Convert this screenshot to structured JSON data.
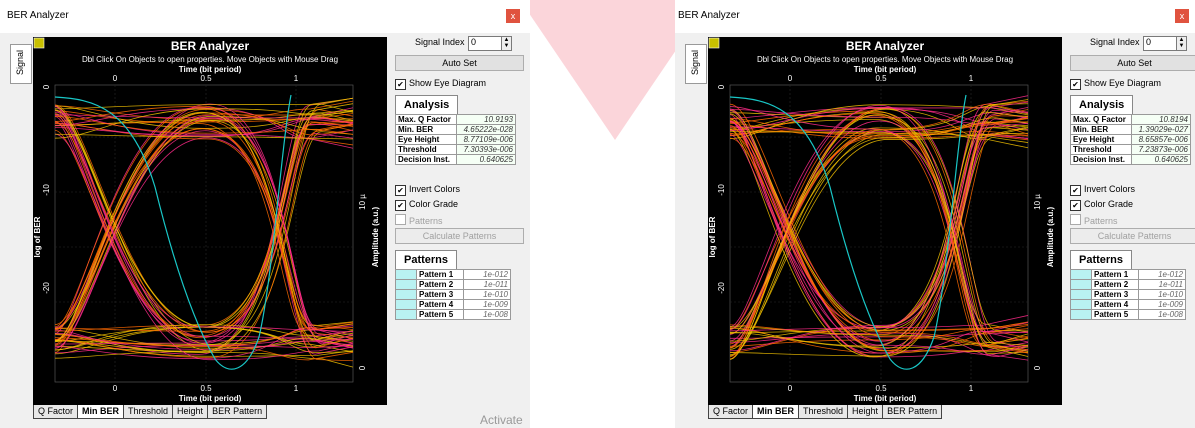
{
  "windows": [
    {
      "title": "BER Analyzer",
      "close_icon": "x",
      "side_tab": "Signal",
      "plot": {
        "title": "BER Analyzer",
        "subtitle": "Dbl Click On Objects to open properties.  Move Objects with Mouse Drag",
        "x_top_label": "Time (bit period)",
        "x_bottom_label": "Time (bit period)",
        "y_left_label": "log of BER",
        "y_right_label": "Amplitude (a.u.)",
        "x_ticks": [
          "0",
          "0.5",
          "1"
        ],
        "y_left_ticks": [
          "0",
          "-10",
          "-20"
        ],
        "y_right_ticks": [
          "10 µ",
          "0"
        ]
      },
      "signal_index_label": "Signal Index",
      "signal_index_value": "0",
      "auto_set_label": "Auto Set",
      "show_eye_label": "Show Eye Diagram",
      "analysis_tab": "Analysis",
      "analysis": [
        {
          "key": "Max. Q Factor",
          "value": "10.9193"
        },
        {
          "key": "Min. BER",
          "value": "4.65222e-028"
        },
        {
          "key": "Eye Height",
          "value": "8.77109e-006"
        },
        {
          "key": "Threshold",
          "value": "7.30393e-006"
        },
        {
          "key": "Decision Inst.",
          "value": "0.640625"
        }
      ],
      "invert_colors_label": "Invert Colors",
      "color_grade_label": "Color Grade",
      "patterns_check_label": "Patterns",
      "calc_patterns_label": "Calculate Patterns",
      "patterns_tab": "Patterns",
      "patterns": [
        {
          "key": "Pattern 1",
          "value": "1e-012"
        },
        {
          "key": "Pattern 2",
          "value": "1e-011"
        },
        {
          "key": "Pattern 3",
          "value": "1e-010"
        },
        {
          "key": "Pattern 4",
          "value": "1e-009"
        },
        {
          "key": "Pattern 5",
          "value": "1e-008"
        }
      ],
      "bottom_tabs": [
        "Q Factor",
        "Min BER",
        "Threshold",
        "Height",
        "BER Pattern"
      ],
      "active_tab": "Min BER",
      "watermark": "Activate"
    },
    {
      "title": "BER Analyzer",
      "close_icon": "x",
      "side_tab": "Signal",
      "plot": {
        "title": "BER Analyzer",
        "subtitle": "Dbl Click On Objects to open properties.  Move Objects with Mouse Drag",
        "x_top_label": "Time (bit period)",
        "x_bottom_label": "Time (bit period)",
        "y_left_label": "log of BER",
        "y_right_label": "Amplitude (a.u.)",
        "x_ticks": [
          "0",
          "0.5",
          "1"
        ],
        "y_left_ticks": [
          "0",
          "-10",
          "-20"
        ],
        "y_right_ticks": [
          "10 µ",
          "0"
        ]
      },
      "signal_index_label": "Signal Index",
      "signal_index_value": "0",
      "auto_set_label": "Auto Set",
      "show_eye_label": "Show Eye Diagram",
      "analysis_tab": "Analysis",
      "analysis": [
        {
          "key": "Max. Q Factor",
          "value": "10.8194"
        },
        {
          "key": "Min. BER",
          "value": "1.39029e-027"
        },
        {
          "key": "Eye Height",
          "value": "8.65857e-006"
        },
        {
          "key": "Threshold",
          "value": "7.23873e-006"
        },
        {
          "key": "Decision Inst.",
          "value": "0.640625"
        }
      ],
      "invert_colors_label": "Invert Colors",
      "color_grade_label": "Color Grade",
      "patterns_check_label": "Patterns",
      "calc_patterns_label": "Calculate Patterns",
      "patterns_tab": "Patterns",
      "patterns": [
        {
          "key": "Pattern 1",
          "value": "1e-012"
        },
        {
          "key": "Pattern 2",
          "value": "1e-011"
        },
        {
          "key": "Pattern 3",
          "value": "1e-010"
        },
        {
          "key": "Pattern 4",
          "value": "1e-009"
        },
        {
          "key": "Pattern 5",
          "value": "1e-008"
        }
      ],
      "bottom_tabs": [
        "Q Factor",
        "Min BER",
        "Threshold",
        "Height",
        "BER Pattern"
      ],
      "active_tab": "Min BER"
    }
  ],
  "colors": {
    "plot_bg": "#000000",
    "eye_trace_yellow": "#f0c000",
    "eye_trace_orange": "#ff6a00",
    "eye_trace_magenta": "#ff2a8a",
    "ber_curve": "#19c7c7",
    "pattern_swatch": "#b9f2f2",
    "close_button": "#e0533f"
  }
}
